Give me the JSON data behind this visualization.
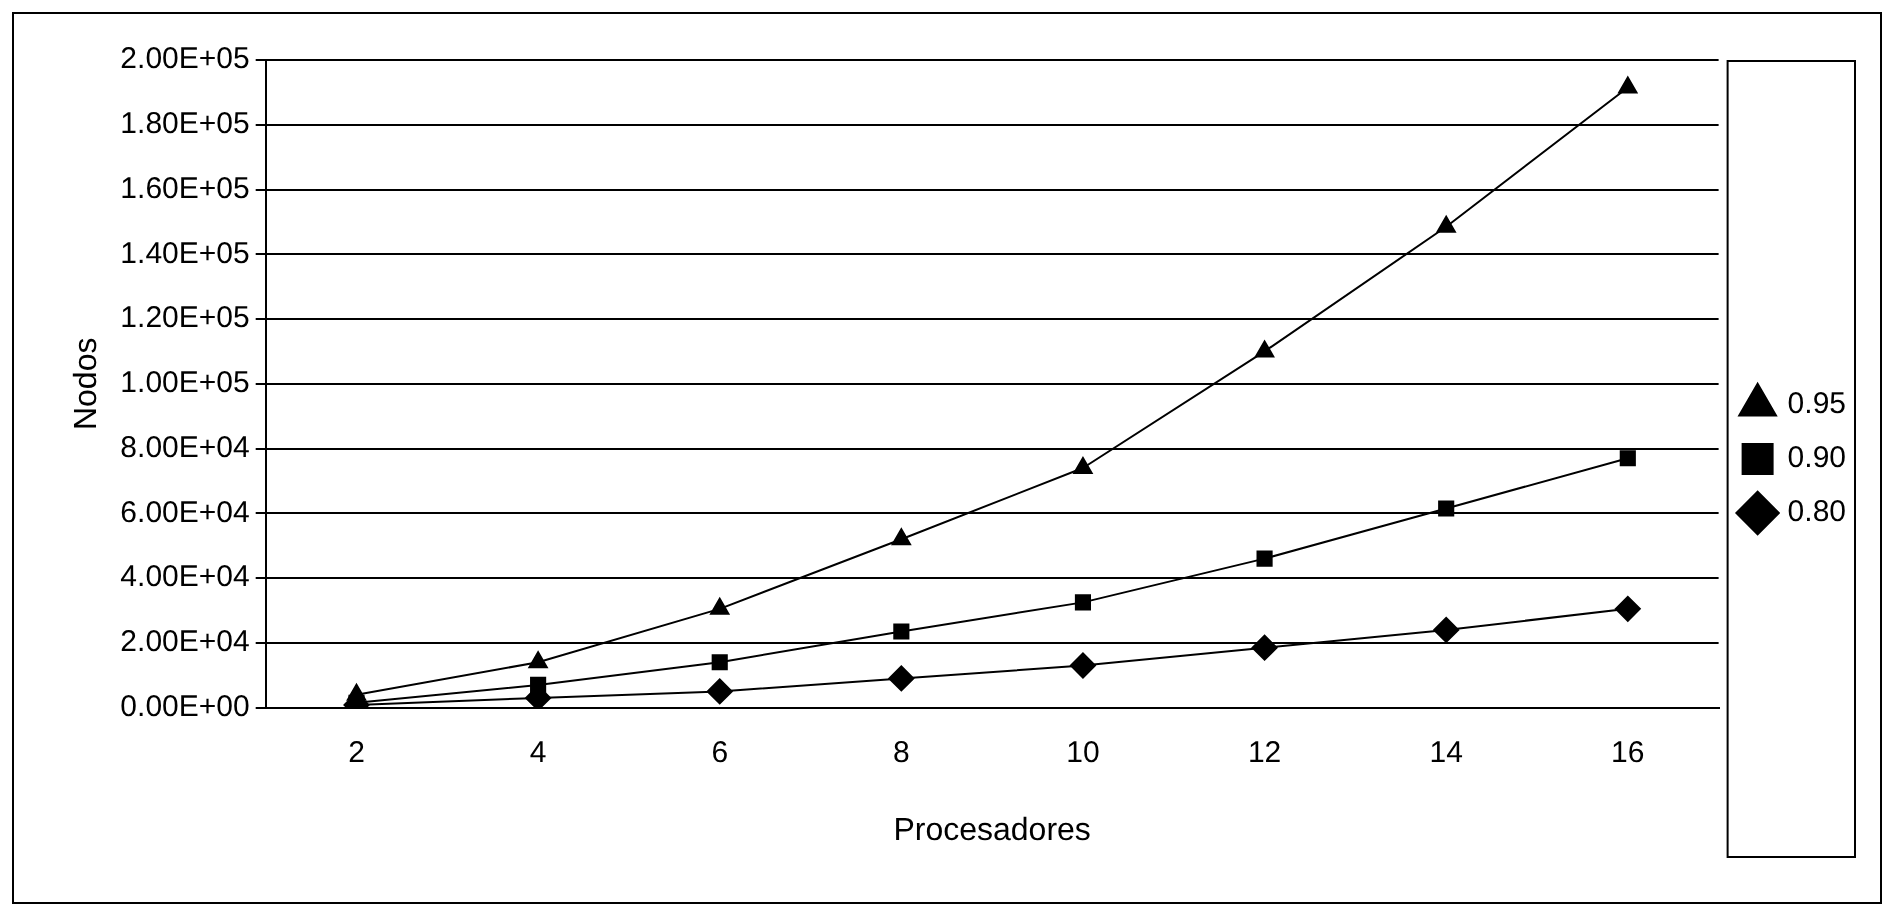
{
  "chart_data": {
    "type": "line",
    "xlabel": "Procesadores",
    "ylabel": "Nodos",
    "categories": [
      "2",
      "4",
      "6",
      "8",
      "10",
      "12",
      "14",
      "16"
    ],
    "series": [
      {
        "name": "0.80",
        "color": "#000000",
        "marker": "diamond",
        "values": [
          800,
          3000,
          5000,
          9000,
          13000,
          18500,
          24000,
          30500
        ]
      },
      {
        "name": "0.90",
        "color": "#000000",
        "marker": "square",
        "values": [
          1500,
          7000,
          14000,
          23500,
          32500,
          46000,
          61500,
          77000
        ]
      },
      {
        "name": "0.95",
        "color": "#000000",
        "marker": "triangle",
        "values": [
          4000,
          14000,
          30500,
          52000,
          74000,
          110000,
          148500,
          191500
        ]
      }
    ],
    "ylim": [
      0,
      200000
    ],
    "yticks": [
      {
        "value": 0,
        "label": "0.00E+00"
      },
      {
        "value": 20000,
        "label": "2.00E+04"
      },
      {
        "value": 40000,
        "label": "4.00E+04"
      },
      {
        "value": 60000,
        "label": "6.00E+04"
      },
      {
        "value": 80000,
        "label": "8.00E+04"
      },
      {
        "value": 100000,
        "label": "1.00E+05"
      },
      {
        "value": 120000,
        "label": "1.20E+05"
      },
      {
        "value": 140000,
        "label": "1.40E+05"
      },
      {
        "value": 160000,
        "label": "1.60E+05"
      },
      {
        "value": 180000,
        "label": "1.80E+05"
      },
      {
        "value": 200000,
        "label": "2.00E+05"
      }
    ],
    "grid": "y",
    "legend": "right",
    "line_style": "solid"
  }
}
